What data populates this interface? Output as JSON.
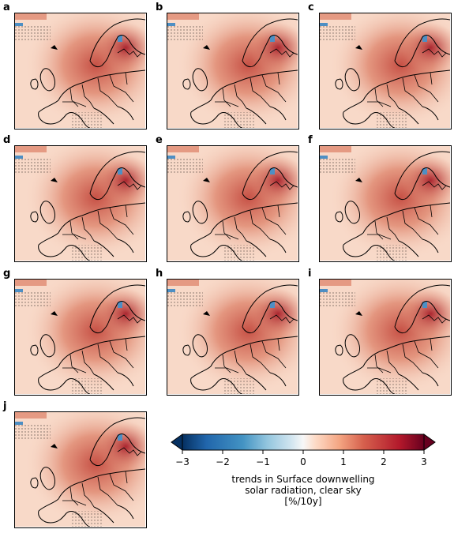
{
  "panels": [
    {
      "label": "a"
    },
    {
      "label": "b"
    },
    {
      "label": "c"
    },
    {
      "label": "d"
    },
    {
      "label": "e"
    },
    {
      "label": "f"
    },
    {
      "label": "g"
    },
    {
      "label": "h"
    },
    {
      "label": "i"
    },
    {
      "label": "j"
    }
  ],
  "colorbar": {
    "ticks": [
      "−3",
      "−2",
      "−1",
      "0",
      "1",
      "2",
      "3"
    ],
    "tick_values": [
      -3,
      -2,
      -1,
      0,
      1,
      2,
      3
    ],
    "range": [
      -3,
      3
    ],
    "extend": "both",
    "caption_line1": "trends in Surface downwelling",
    "caption_line2": "solar radiation, clear sky",
    "caption_line3": "[%/10y]",
    "colors": [
      "#053061",
      "#2166ac",
      "#4393c3",
      "#92c5de",
      "#d1e5f0",
      "#f7f7f7",
      "#fddbc7",
      "#f4a582",
      "#d6604d",
      "#b2182b",
      "#67001f"
    ]
  },
  "map_colors": {
    "background_light": "#f8d9c8",
    "mid_red": "#e08a72",
    "deep_red": "#c44a3f",
    "blue_spot": "#4d8fc4",
    "coast": "#000000"
  }
}
